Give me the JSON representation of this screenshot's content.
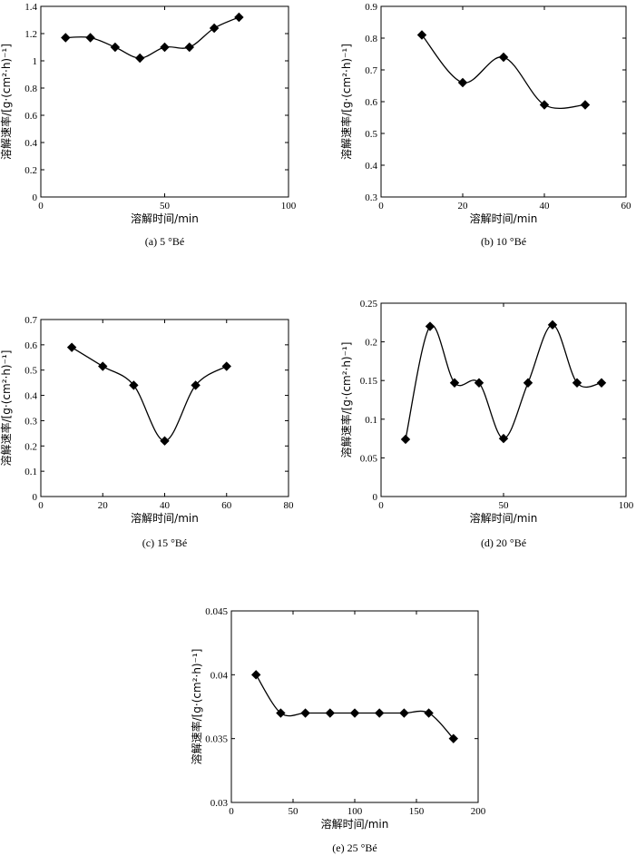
{
  "chart_data": [
    {
      "type": "line",
      "caption": "(a) 5 °Bé",
      "xlabel": "溶解时间/min",
      "ylabel": "溶解速率/[g·(cm²·h)⁻¹]",
      "xlim": [
        0,
        100
      ],
      "ylim": [
        0,
        1.4
      ],
      "xticks": [
        "0",
        "50",
        "100"
      ],
      "yticks": [
        "0",
        "0.2",
        "0.4",
        "0.6",
        "0.8",
        "1",
        "1.2",
        "1.4"
      ],
      "series": [
        {
          "x": [
            10,
            20,
            30,
            40,
            50,
            60,
            70,
            80
          ],
          "y": [
            1.17,
            1.17,
            1.1,
            1.02,
            1.1,
            1.1,
            1.24,
            1.32
          ]
        }
      ]
    },
    {
      "type": "line",
      "caption": "(b) 10 °Bé",
      "xlabel": "溶解时间/min",
      "ylabel": "溶解速率/[g·(cm²·h)⁻¹]",
      "xlim": [
        0,
        60
      ],
      "ylim": [
        0.3,
        0.9
      ],
      "xticks": [
        "0",
        "20",
        "40",
        "60"
      ],
      "yticks": [
        "0.3",
        "0.4",
        "0.5",
        "0.6",
        "0.7",
        "0.8",
        "0.9"
      ],
      "series": [
        {
          "x": [
            10,
            20,
            30,
            40,
            50
          ],
          "y": [
            0.81,
            0.66,
            0.74,
            0.59,
            0.59
          ]
        }
      ]
    },
    {
      "type": "line",
      "caption": "(c) 15 °Bé",
      "xlabel": "溶解时间/min",
      "ylabel": "溶解速率/[g·(cm²·h)⁻¹]",
      "xlim": [
        0,
        80
      ],
      "ylim": [
        0,
        0.7
      ],
      "xticks": [
        "0",
        "20",
        "40",
        "60",
        "80"
      ],
      "yticks": [
        "0",
        "0.1",
        "0.2",
        "0.3",
        "0.4",
        "0.5",
        "0.6",
        "0.7"
      ],
      "series": [
        {
          "x": [
            10,
            20,
            30,
            40,
            50,
            60
          ],
          "y": [
            0.59,
            0.515,
            0.44,
            0.22,
            0.44,
            0.515
          ]
        }
      ]
    },
    {
      "type": "line",
      "caption": "(d) 20 °Bé",
      "xlabel": "溶解时间/min",
      "ylabel": "溶解速率/[g·(cm²·h)⁻¹]",
      "xlim": [
        0,
        100
      ],
      "ylim": [
        0,
        0.25
      ],
      "xticks": [
        "0",
        "50",
        "100"
      ],
      "yticks": [
        "0",
        "0.05",
        "0.1",
        "0.15",
        "0.2",
        "0.25"
      ],
      "series": [
        {
          "x": [
            10,
            20,
            30,
            40,
            50,
            60,
            70,
            80,
            90
          ],
          "y": [
            0.074,
            0.22,
            0.147,
            0.147,
            0.075,
            0.147,
            0.222,
            0.147,
            0.147
          ]
        }
      ]
    },
    {
      "type": "line",
      "caption": "(e) 25 °Bé",
      "xlabel": "溶解时间/min",
      "ylabel": "溶解速率/[g·(cm²·h)⁻¹]",
      "xlim": [
        0,
        200
      ],
      "ylim": [
        0.03,
        0.045
      ],
      "xticks": [
        "0",
        "50",
        "100",
        "150",
        "200"
      ],
      "yticks": [
        "0.03",
        "0.035",
        "0.04",
        "0.045"
      ],
      "series": [
        {
          "x": [
            20,
            40,
            60,
            80,
            100,
            120,
            140,
            160,
            180
          ],
          "y": [
            0.04,
            0.037,
            0.037,
            0.037,
            0.037,
            0.037,
            0.037,
            0.037,
            0.035
          ]
        }
      ]
    }
  ]
}
